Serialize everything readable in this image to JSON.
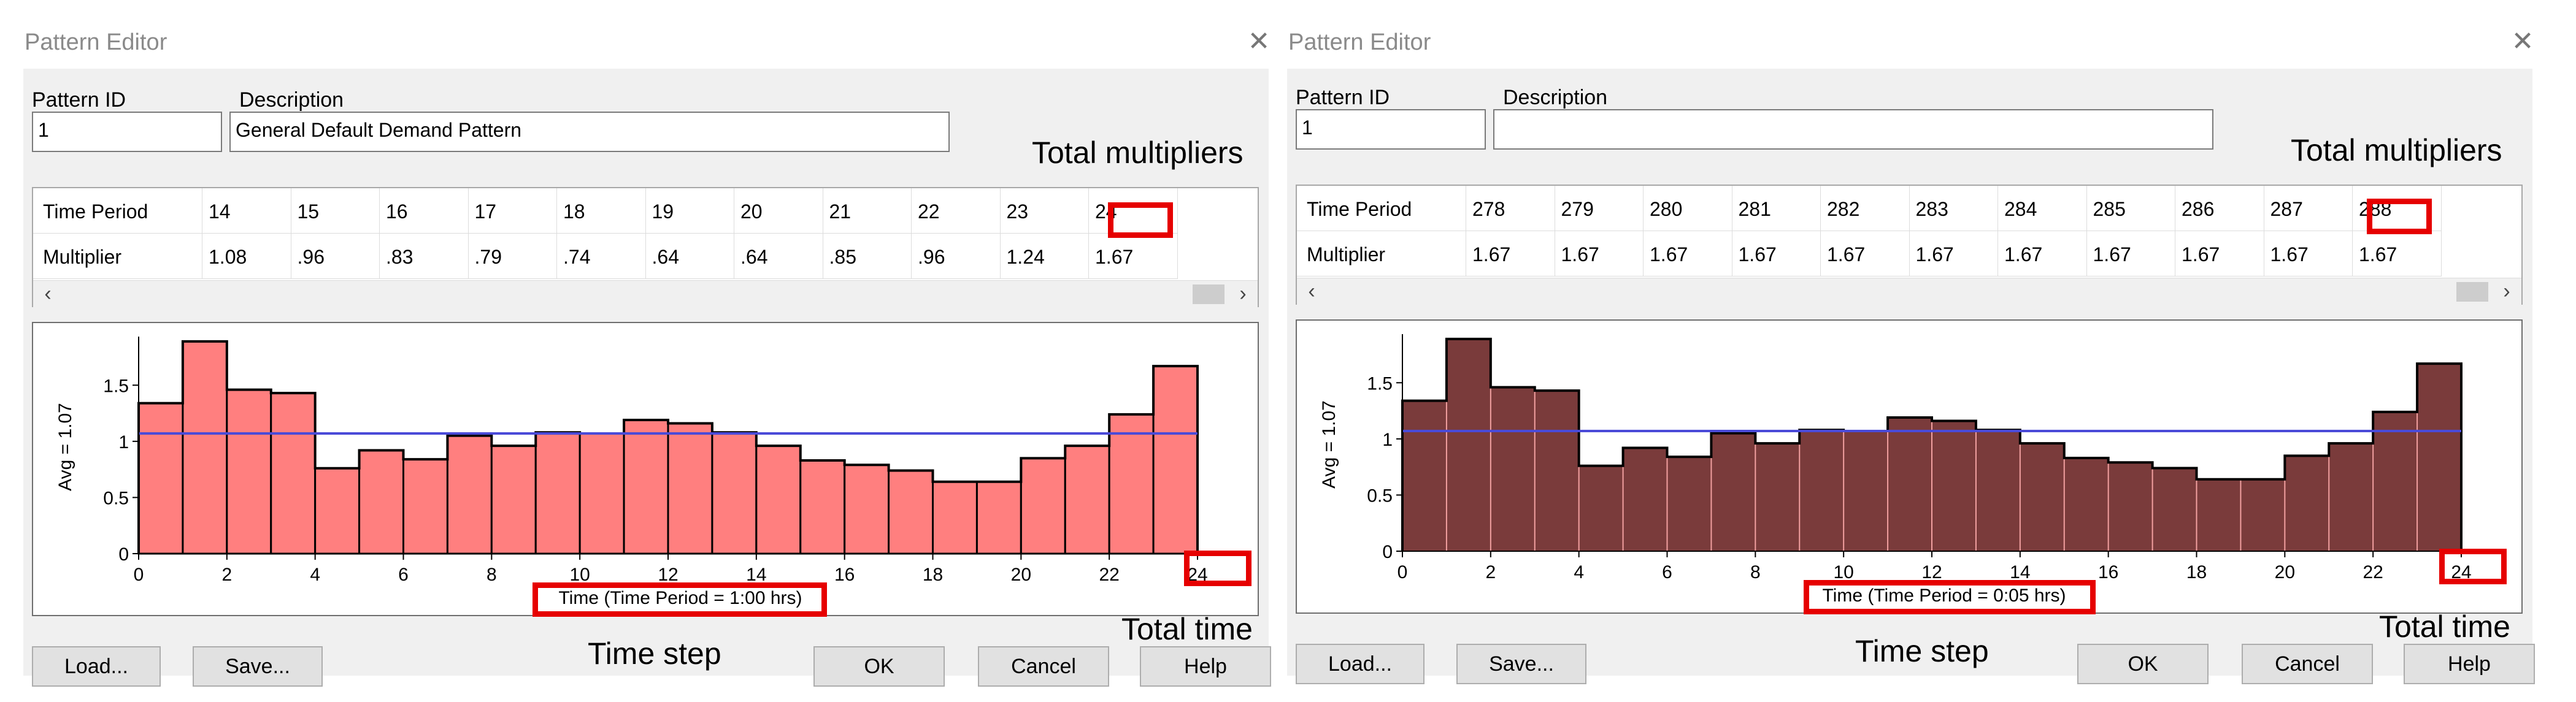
{
  "window_title": "Pattern Editor",
  "labels": {
    "pattern_id": "Pattern ID",
    "description": "Description",
    "time_period": "Time Period",
    "multiplier": "Multiplier"
  },
  "buttons": {
    "load": "Load...",
    "save": "Save...",
    "ok": "OK",
    "cancel": "Cancel",
    "help": "Help"
  },
  "annotations": {
    "total_multipliers": "Total multipliers",
    "total_time": "Total time",
    "time_step": "Time step",
    "color": "#e60000"
  },
  "left_editor": {
    "pattern_id": "1",
    "description": "General Default Demand Pattern",
    "periods": [
      "14",
      "15",
      "16",
      "17",
      "18",
      "19",
      "20",
      "21",
      "22",
      "23",
      "24"
    ],
    "multipliers": [
      "1.08",
      ".96",
      ".83",
      ".79",
      ".74",
      ".64",
      ".64",
      ".85",
      ".96",
      "1.24",
      "1.67"
    ],
    "chart_data": {
      "type": "bar",
      "fill_color": "#ff7f7f",
      "avg_line_color": "#4a4ad8",
      "x": [
        0,
        1,
        2,
        3,
        4,
        5,
        6,
        7,
        8,
        9,
        10,
        11,
        12,
        13,
        14,
        15,
        16,
        17,
        18,
        19,
        20,
        21,
        22,
        23
      ],
      "values": [
        1.34,
        1.89,
        1.46,
        1.43,
        0.76,
        0.92,
        0.84,
        1.05,
        0.96,
        1.08,
        1.07,
        1.19,
        1.16,
        1.08,
        0.96,
        0.83,
        0.79,
        0.74,
        0.64,
        0.64,
        0.85,
        0.96,
        1.24,
        1.67
      ],
      "avg": 1.07,
      "xlim": [
        0,
        24
      ],
      "ylim": [
        0,
        1.9
      ],
      "x_ticks": [
        "0",
        "2",
        "4",
        "6",
        "8",
        "10",
        "12",
        "14",
        "16",
        "18",
        "20",
        "22",
        "24"
      ],
      "y_ticks": [
        "0",
        "0.5",
        "1",
        "1.5"
      ],
      "y_label": "Avg = 1.07",
      "x_label": "Time (Time Period = 1:00 hrs)",
      "grid": false
    }
  },
  "right_editor": {
    "pattern_id": "1",
    "description": "",
    "periods": [
      "278",
      "279",
      "280",
      "281",
      "282",
      "283",
      "284",
      "285",
      "286",
      "287",
      "288"
    ],
    "multipliers": [
      "1.67",
      "1.67",
      "1.67",
      "1.67",
      "1.67",
      "1.67",
      "1.67",
      "1.67",
      "1.67",
      "1.67",
      "1.67"
    ],
    "chart_data": {
      "type": "bar",
      "fill_color": "#7a3b3b",
      "avg_line_color": "#4a4ad8",
      "x": [
        0,
        1,
        2,
        3,
        4,
        5,
        6,
        7,
        8,
        9,
        10,
        11,
        12,
        13,
        14,
        15,
        16,
        17,
        18,
        19,
        20,
        21,
        22,
        23
      ],
      "values": [
        1.34,
        1.89,
        1.46,
        1.43,
        0.76,
        0.92,
        0.84,
        1.05,
        0.96,
        1.08,
        1.07,
        1.19,
        1.16,
        1.08,
        0.96,
        0.83,
        0.79,
        0.74,
        0.64,
        0.64,
        0.85,
        0.96,
        1.24,
        1.67
      ],
      "avg": 1.07,
      "xlim": [
        0,
        24
      ],
      "ylim": [
        0,
        1.9
      ],
      "x_ticks": [
        "0",
        "2",
        "4",
        "6",
        "8",
        "10",
        "12",
        "14",
        "16",
        "18",
        "20",
        "22",
        "24"
      ],
      "y_ticks": [
        "0",
        "0.5",
        "1",
        "1.5"
      ],
      "y_label": "Avg = 1.07",
      "x_label": "Time (Time Period = 0:05 hrs)",
      "grid": false
    }
  }
}
